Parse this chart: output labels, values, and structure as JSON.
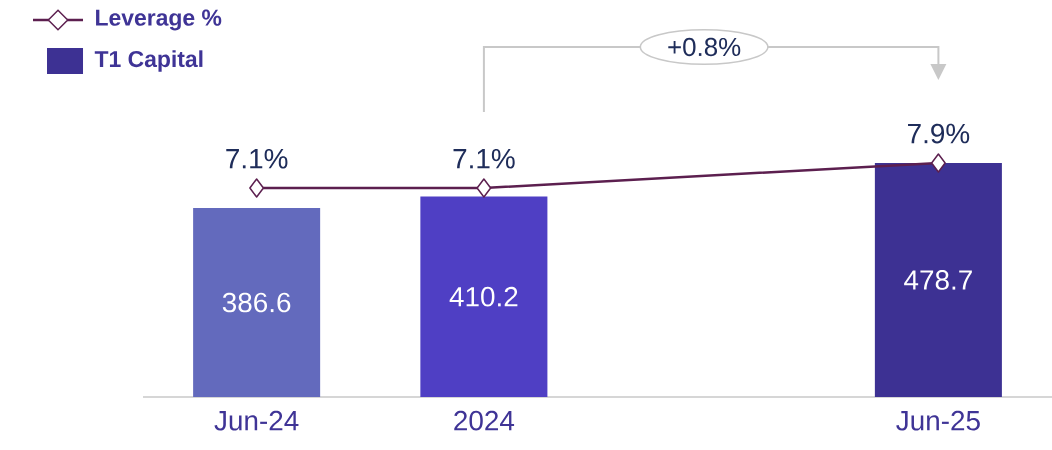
{
  "chart_data": {
    "type": "bar",
    "categories": [
      "Jun-24",
      "2024",
      null,
      "Jun-25"
    ],
    "series": [
      {
        "name": "Leverage %",
        "type": "line",
        "axis": "y2",
        "color": "#5c1f4f",
        "marker": "diamond",
        "values": [
          7.1,
          7.1,
          null,
          7.9
        ],
        "value_labels": [
          "7.1%",
          "7.1%",
          null,
          "7.9%"
        ]
      },
      {
        "name": "T1 Capital",
        "color": "#3d3193",
        "colors": [
          "#636abd",
          "#4f3fc4",
          null,
          "#3d3193"
        ],
        "values": [
          386.6,
          410.2,
          null,
          478.7
        ],
        "value_labels": [
          "386.6",
          "410.2",
          null,
          "478.7"
        ]
      }
    ],
    "annotations": [
      "+0.8%"
    ],
    "tick_labels": "x",
    "grid": false,
    "legend": "top left"
  }
}
